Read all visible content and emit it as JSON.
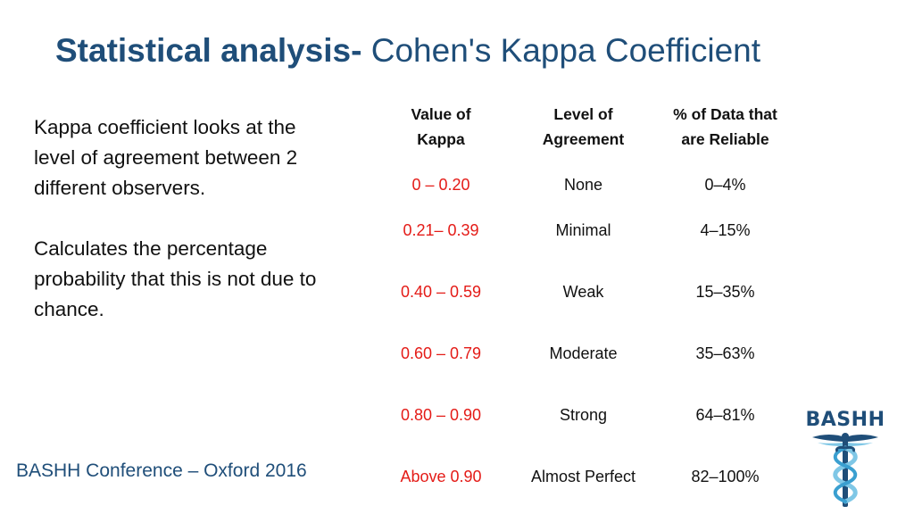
{
  "title": {
    "bold": "Statistical analysis-",
    "regular": "Cohen's Kappa Coefficient"
  },
  "body": {
    "paragraph1": "Kappa coefficient looks at the level of agreement between 2 different observers.",
    "paragraph2": "Calculates the percentage probability that this is not due to chance."
  },
  "table": {
    "headers": {
      "value_line1": "Value of",
      "value_line2": "Kappa",
      "level_line1": "Level of",
      "level_line2": "Agreement",
      "percent_line1": "% of Data that",
      "percent_line2": "are Reliable"
    },
    "rows": [
      {
        "value": "0 – 0.20",
        "level": "None",
        "percent": "0–4%"
      },
      {
        "value": "0.21– 0.39",
        "level": "Minimal",
        "percent": "4–15%"
      },
      {
        "value": "0.40 – 0.59",
        "level": "Weak",
        "percent": "15–35%"
      },
      {
        "value": "0.60 – 0.79",
        "level": "Moderate",
        "percent": "35–63%"
      },
      {
        "value": "0.80 – 0.90",
        "level": "Strong",
        "percent": "64–81%"
      },
      {
        "value": "Above 0.90",
        "level": "Almost Perfect",
        "percent": "82–100%"
      }
    ]
  },
  "footer": {
    "text": "BASHH Conference – Oxford 2016"
  },
  "logo": {
    "text": "BASHH",
    "icon": "caduceus-icon"
  },
  "colors": {
    "title": "#1f4e79",
    "value_red": "#e41b17",
    "logo_blue": "#1f4e79",
    "logo_light": "#7fc7e6"
  }
}
